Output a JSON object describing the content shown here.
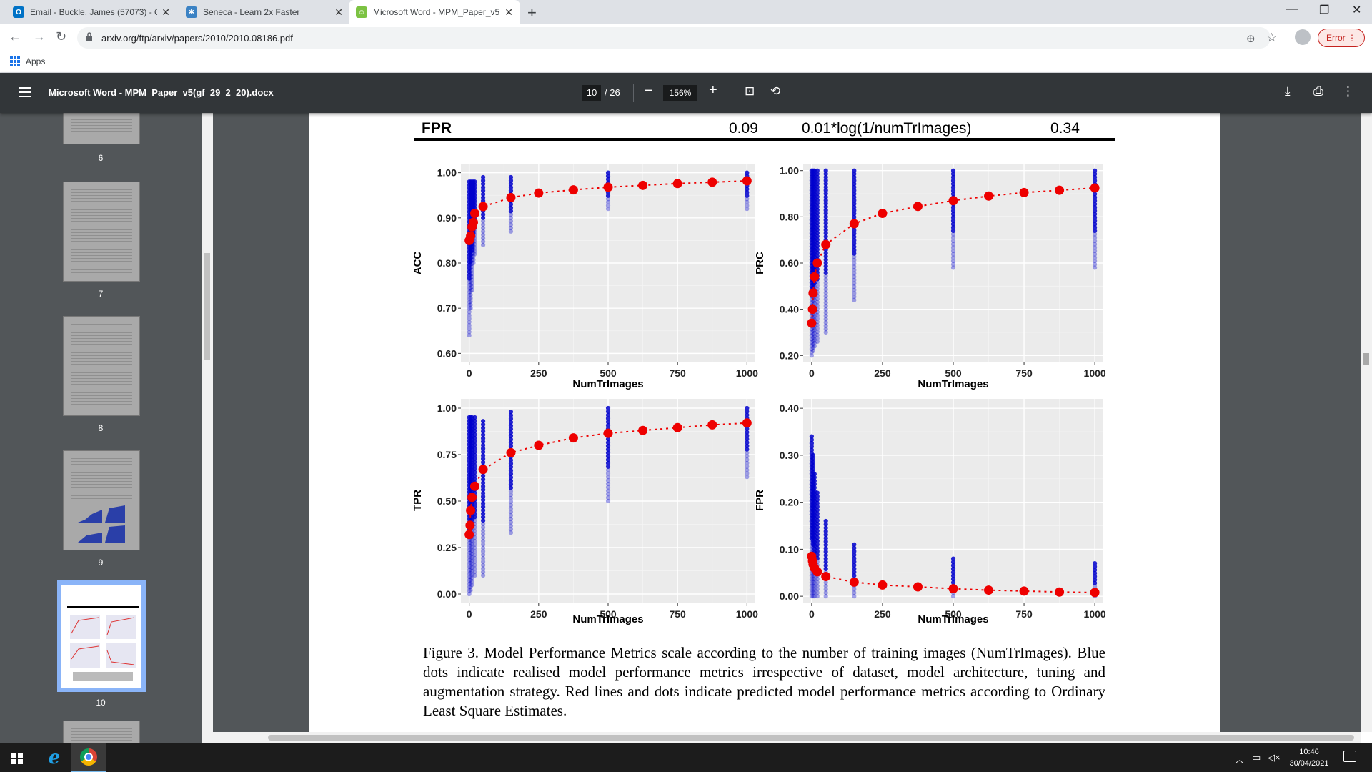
{
  "browser": {
    "tabs": [
      {
        "title": "Email - Buckle, James (57073) - O",
        "icon": "outlook-icon",
        "color": "#0072c6",
        "active": false
      },
      {
        "title": "Seneca - Learn 2x Faster",
        "icon": "seneca-icon",
        "color": "#3b82c4",
        "active": false
      },
      {
        "title": "Microsoft Word - MPM_Paper_v5",
        "icon": "pdf-viewer-icon",
        "color": "#7cc242",
        "active": true
      }
    ],
    "url": "arxiv.org/ftp/arxiv/papers/2010/2010.08186.pdf",
    "error_label": "Error",
    "bookmarks_apps": "Apps"
  },
  "pdf": {
    "title": "Microsoft Word - MPM_Paper_v5(gf_29_2_20).docx",
    "current_page": "10",
    "total_pages": "/ 26",
    "zoom": "156%"
  },
  "sidebar": {
    "pages": [
      "6",
      "7",
      "8",
      "9",
      "10"
    ],
    "selected_page": "10"
  },
  "table_row": {
    "metric": "FPR",
    "value": "0.09",
    "formula": "0.01*log(1/numTrImages)",
    "r2": "0.34"
  },
  "chart_data": [
    {
      "type": "scatter",
      "ylabel": "ACC",
      "xlabel": "NumTrImages",
      "x_ticks": [
        "0",
        "250",
        "500",
        "750",
        "1000"
      ],
      "y_ticks": [
        "0.60",
        "0.70",
        "0.80",
        "0.90",
        "1.00"
      ],
      "ylim": [
        0.58,
        1.02
      ],
      "xlim": [
        -30,
        1030
      ],
      "grid": true,
      "series": [
        {
          "name": "",
          "x": [
            0,
            5,
            10,
            15,
            20,
            50,
            150,
            250,
            375,
            500,
            625,
            750,
            875,
            1000
          ],
          "y": [
            0.85,
            0.86,
            0.88,
            0.89,
            0.91,
            0.925,
            0.945,
            0.955,
            0.962,
            0.968,
            0.972,
            0.976,
            0.979,
            0.982
          ]
        }
      ]
    },
    {
      "type": "scatter",
      "ylabel": "PRC",
      "xlabel": "NumTrImages",
      "x_ticks": [
        "0",
        "250",
        "500",
        "750",
        "1000"
      ],
      "y_ticks": [
        "0.20",
        "0.40",
        "0.60",
        "0.80",
        "1.00"
      ],
      "ylim": [
        0.17,
        1.03
      ],
      "xlim": [
        -30,
        1030
      ],
      "grid": true,
      "series": [
        {
          "name": "",
          "x": [
            0,
            3,
            5,
            10,
            20,
            50,
            150,
            250,
            375,
            500,
            625,
            750,
            875,
            1000
          ],
          "y": [
            0.34,
            0.4,
            0.47,
            0.54,
            0.6,
            0.68,
            0.77,
            0.815,
            0.845,
            0.87,
            0.89,
            0.905,
            0.915,
            0.925
          ]
        }
      ]
    },
    {
      "type": "scatter",
      "ylabel": "TPR",
      "xlabel": "NumTrImages",
      "x_ticks": [
        "0",
        "250",
        "500",
        "750",
        "1000"
      ],
      "y_ticks": [
        "0.00",
        "0.25",
        "0.50",
        "0.75",
        "1.00"
      ],
      "ylim": [
        -0.05,
        1.05
      ],
      "xlim": [
        -30,
        1030
      ],
      "grid": true,
      "series": [
        {
          "name": "",
          "x": [
            0,
            3,
            5,
            10,
            20,
            50,
            150,
            250,
            375,
            500,
            625,
            750,
            875,
            1000
          ],
          "y": [
            0.32,
            0.37,
            0.45,
            0.52,
            0.58,
            0.67,
            0.76,
            0.8,
            0.84,
            0.865,
            0.88,
            0.895,
            0.91,
            0.92
          ]
        }
      ]
    },
    {
      "type": "scatter",
      "ylabel": "FPR",
      "xlabel": "NumTrImages",
      "x_ticks": [
        "0",
        "250",
        "500",
        "750",
        "1000"
      ],
      "y_ticks": [
        "0.00",
        "0.10",
        "0.20",
        "0.30",
        "0.40"
      ],
      "ylim": [
        -0.015,
        0.42
      ],
      "xlim": [
        -30,
        1030
      ],
      "grid": true,
      "series": [
        {
          "name": "",
          "x": [
            0,
            3,
            5,
            10,
            20,
            50,
            150,
            250,
            375,
            500,
            625,
            750,
            875,
            1000
          ],
          "y": [
            0.085,
            0.075,
            0.068,
            0.06,
            0.052,
            0.042,
            0.03,
            0.024,
            0.02,
            0.016,
            0.013,
            0.011,
            0.009,
            0.008
          ]
        }
      ]
    }
  ],
  "caption": "Figure 3. Model Performance Metrics scale according to the number of training images (NumTrImages). Blue dots indicate realised model performance metrics irrespective of dataset, model architecture, tuning and augmentation strategy. Red lines and dots indicate predicted model performance metrics according to Ordinary Least Square Estimates.",
  "taskbar": {
    "time": "10:46",
    "date": "30/04/2021"
  },
  "colors": {
    "fit": "#ee0000",
    "observed": "#0000cc",
    "panel_bg": "#ebebeb",
    "toolbar_bg": "#323639",
    "sidebar_bg": "#525659"
  }
}
